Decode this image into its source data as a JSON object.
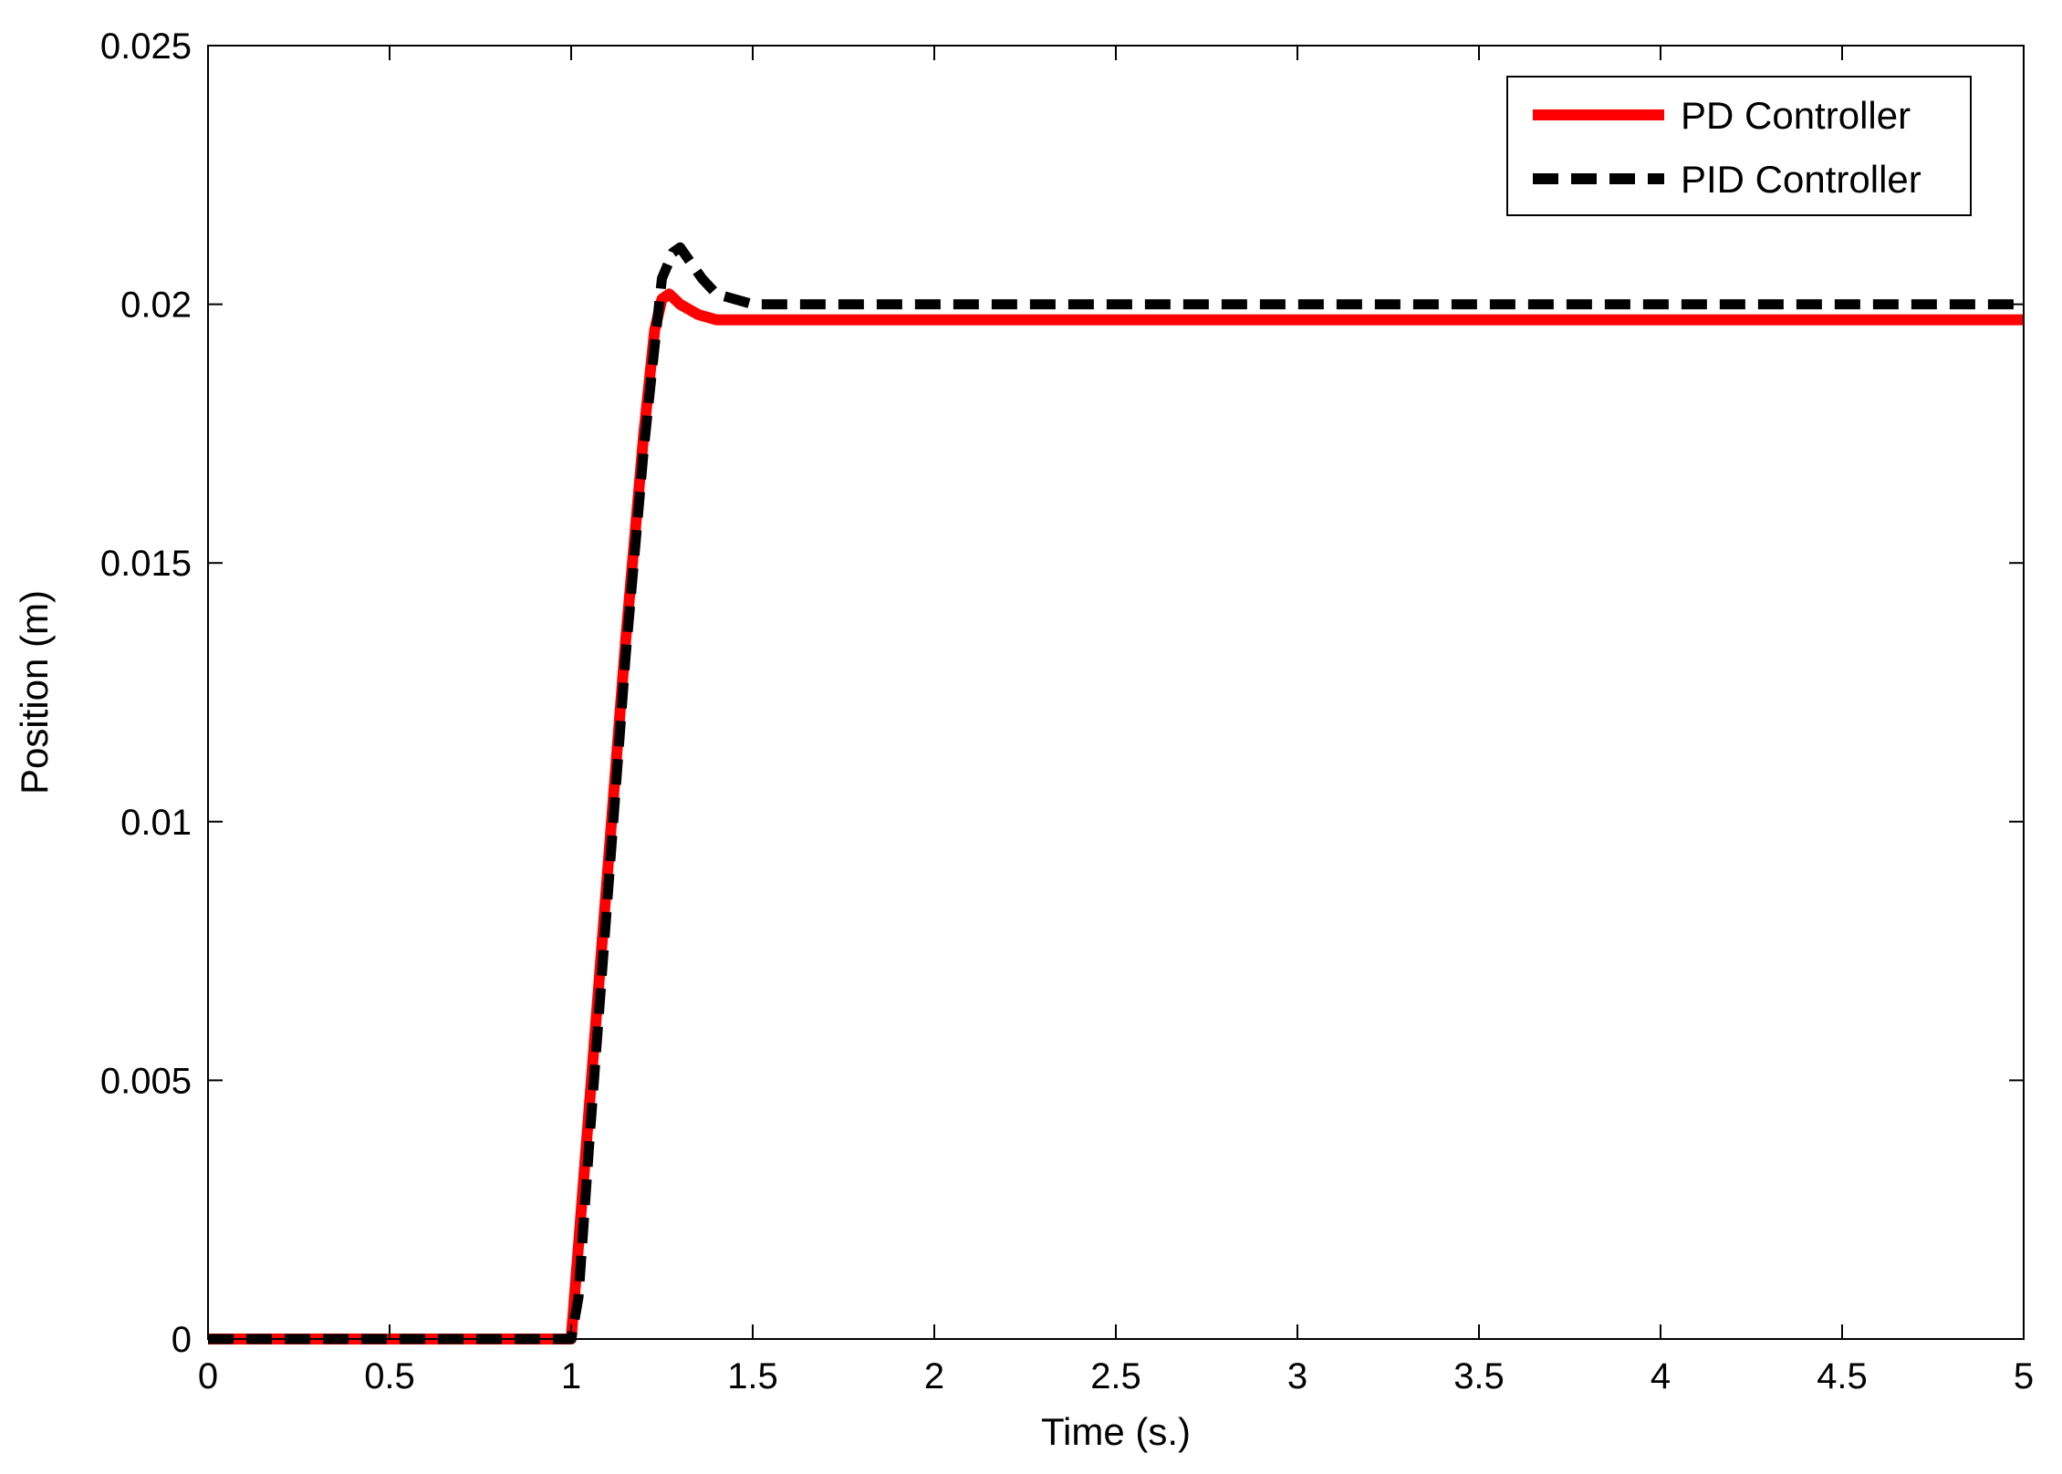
{
  "chart_data": {
    "type": "line",
    "title": "",
    "xlabel": "Time (s.)",
    "ylabel": "Position (m)",
    "xlim": [
      0,
      5
    ],
    "ylim": [
      0,
      0.025
    ],
    "xticks": [
      0,
      0.5,
      1,
      1.5,
      2,
      2.5,
      3,
      3.5,
      4,
      4.5,
      5
    ],
    "xtick_labels": [
      "0",
      "0.5",
      "1",
      "1.5",
      "2",
      "2.5",
      "3",
      "3.5",
      "4",
      "4.5",
      "5"
    ],
    "yticks": [
      0,
      0.005,
      0.01,
      0.015,
      0.02,
      0.025
    ],
    "ytick_labels": [
      "0",
      "0.005",
      "0.01",
      "0.015",
      "0.02",
      "0.025"
    ],
    "grid": false,
    "legend_position": "top-right",
    "series": [
      {
        "name": "PD Controller",
        "color": "#ff0000",
        "style": "solid",
        "x": [
          0,
          1.0,
          1.02,
          1.05,
          1.1,
          1.15,
          1.2,
          1.23,
          1.25,
          1.27,
          1.3,
          1.35,
          1.4,
          1.5,
          2,
          3,
          4,
          5
        ],
        "y": [
          0,
          0,
          0.0018,
          0.0045,
          0.009,
          0.0135,
          0.0175,
          0.0195,
          0.0201,
          0.0202,
          0.02,
          0.0198,
          0.0197,
          0.0197,
          0.0197,
          0.0197,
          0.0197,
          0.0197
        ]
      },
      {
        "name": "PID Controller",
        "color": "#000000",
        "style": "dashed",
        "x": [
          0,
          1.0,
          1.02,
          1.05,
          1.1,
          1.15,
          1.2,
          1.23,
          1.25,
          1.28,
          1.3,
          1.33,
          1.36,
          1.4,
          1.45,
          1.5,
          2,
          3,
          4,
          5
        ],
        "y": [
          0,
          0,
          0.0008,
          0.0038,
          0.0085,
          0.0132,
          0.0172,
          0.0192,
          0.0205,
          0.021,
          0.0211,
          0.0208,
          0.0205,
          0.0202,
          0.0201,
          0.02,
          0.02,
          0.02,
          0.02,
          0.02
        ]
      }
    ]
  }
}
